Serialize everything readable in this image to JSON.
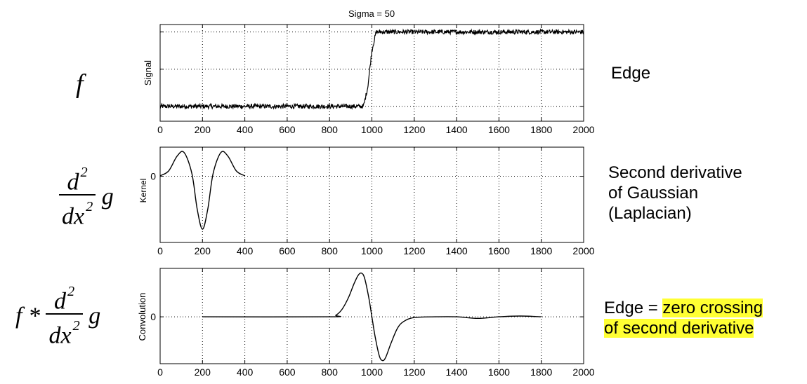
{
  "formulas": {
    "f": "f",
    "d2": "d",
    "exp2": "2",
    "dx": "dx",
    "g": "g",
    "conv_prefix": "f *"
  },
  "descriptions": {
    "edge": "Edge",
    "second_derivative_line1": "Second derivative",
    "second_derivative_line2": "of Gaussian",
    "second_derivative_line3": "(Laplacian)",
    "crossing_prefix": "Edge = ",
    "crossing_highlight_line1": "zero crossing",
    "crossing_highlight_line2": "of second derivative"
  },
  "colors": {
    "highlight": "#ffff33",
    "line": "#000000",
    "grid": "#000000"
  },
  "chart_data": [
    {
      "type": "line",
      "title": "Sigma = 50",
      "ylabel": "Signal",
      "xlim": [
        0,
        2000
      ],
      "ylim": [
        -0.2,
        1.1
      ],
      "xticks": [
        0,
        200,
        400,
        600,
        800,
        1000,
        1200,
        1400,
        1600,
        1800,
        2000
      ],
      "yticks": [
        0,
        0.5,
        1
      ],
      "ytick_labels": [
        "",
        "",
        ""
      ],
      "grid": true,
      "series": [
        {
          "x": [
            0,
            960,
            980,
            1000,
            1020,
            2000
          ],
          "y": [
            0,
            0,
            0.25,
            0.75,
            1,
            1
          ],
          "noise": 0.03
        }
      ]
    },
    {
      "type": "line",
      "ylabel": "Kernel",
      "xlim": [
        0,
        2000
      ],
      "ylim": [
        -1.25,
        0.55
      ],
      "xticks": [
        0,
        200,
        400,
        600,
        800,
        1000,
        1200,
        1400,
        1600,
        1800,
        2000
      ],
      "yticks": [
        0
      ],
      "ytick_labels": [
        "0"
      ],
      "grid": true,
      "series": [
        {
          "x": [
            0,
            40,
            80,
            113,
            150,
            175,
            200,
            225,
            250,
            287,
            320,
            360,
            400
          ],
          "y": [
            0.01,
            0.1,
            0.38,
            0.45,
            0.05,
            -0.62,
            -1.0,
            -0.62,
            0.05,
            0.45,
            0.38,
            0.1,
            0.01
          ]
        }
      ]
    },
    {
      "type": "line",
      "ylabel": "Convolution",
      "xlim": [
        0,
        2000
      ],
      "ylim": [
        -0.6,
        0.62
      ],
      "xticks": [
        0,
        200,
        400,
        600,
        800,
        1000,
        1200,
        1400,
        1600,
        1800,
        2000
      ],
      "yticks": [
        0
      ],
      "ytick_labels": [
        "0"
      ],
      "grid": true,
      "series": [
        {
          "x": [
            200,
            800,
            830,
            860,
            890,
            915,
            935,
            950,
            965,
            985,
            1000,
            1015,
            1035,
            1050,
            1065,
            1090,
            1120,
            1150,
            1200,
            1300,
            1400,
            1500,
            1600,
            1700,
            1800
          ],
          "y": [
            0,
            0,
            0.02,
            0.1,
            0.25,
            0.42,
            0.53,
            0.56,
            0.5,
            0.25,
            0,
            -0.25,
            -0.5,
            -0.56,
            -0.52,
            -0.34,
            -0.15,
            -0.06,
            -0.01,
            0,
            0,
            -0.02,
            0,
            0.01,
            0
          ]
        }
      ]
    }
  ]
}
